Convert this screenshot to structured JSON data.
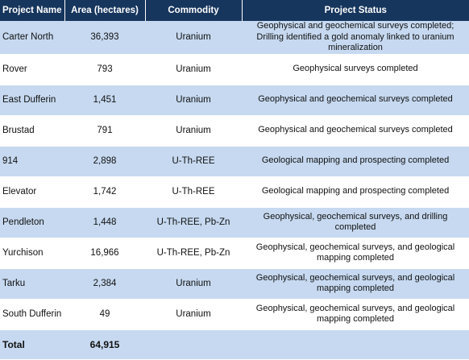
{
  "table": {
    "headers": [
      "Project Name",
      "Area (hectares)",
      "Commodity",
      "Project Status"
    ],
    "rows": [
      {
        "name": "Carter North",
        "area": "36,393",
        "commodity": "Uranium",
        "status": "Geophysical and geochemical surveys completed; Drilling identified a gold anomaly linked to uranium mineralization"
      },
      {
        "name": "Rover",
        "area": "793",
        "commodity": "Uranium",
        "status": "Geophysical surveys completed"
      },
      {
        "name": "East Dufferin",
        "area": "1,451",
        "commodity": "Uranium",
        "status": "Geophysical and geochemical surveys completed"
      },
      {
        "name": "Brustad",
        "area": "791",
        "commodity": "Uranium",
        "status": "Geophysical and geochemical surveys completed"
      },
      {
        "name": "914",
        "area": "2,898",
        "commodity": "U-Th-REE",
        "status": "Geological mapping and prospecting completed"
      },
      {
        "name": "Elevator",
        "area": "1,742",
        "commodity": "U-Th-REE",
        "status": "Geological mapping and prospecting completed"
      },
      {
        "name": "Pendleton",
        "area": "1,448",
        "commodity": "U-Th-REE, Pb-Zn",
        "status": "Geophysical, geochemical surveys, and drilling completed"
      },
      {
        "name": "Yurchison",
        "area": "16,966",
        "commodity": "U-Th-REE, Pb-Zn",
        "status": "Geophysical, geochemical surveys, and geological mapping completed"
      },
      {
        "name": "Tarku",
        "area": "2,384",
        "commodity": "Uranium",
        "status": "Geophysical, geochemical surveys, and geological mapping completed"
      },
      {
        "name": "South Dufferin",
        "area": "49",
        "commodity": "Uranium",
        "status": "Geophysical, geochemical surveys, and geological mapping completed"
      }
    ],
    "total": {
      "label": "Total",
      "area": "64,915"
    }
  },
  "colors": {
    "header_bg": "#17365d",
    "row_shade": "#c6d9f0",
    "row_plain": "#ffffff"
  }
}
